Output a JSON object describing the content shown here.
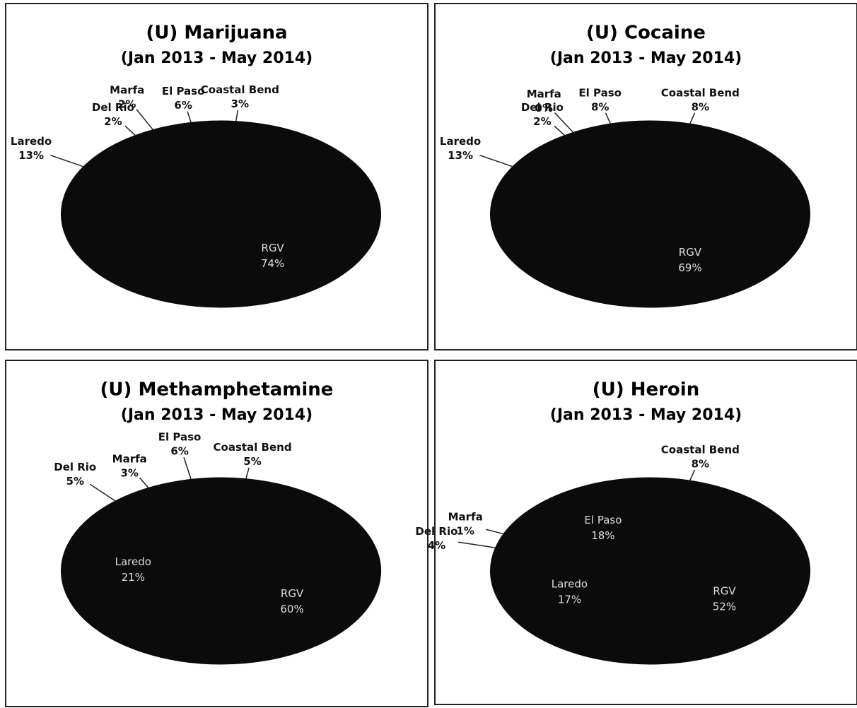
{
  "chart_data": [
    {
      "type": "pie",
      "title": "(U)  Marijuana",
      "subtitle": "(Jan 2013 - May 2014)",
      "categories": [
        "Coastal Bend",
        "RGV",
        "Laredo",
        "Del Rio",
        "Marfa",
        "El Paso"
      ],
      "values": [
        3,
        74,
        13,
        2,
        2,
        6
      ],
      "value_labels": [
        "3%",
        "74%",
        "13%",
        "2%",
        "2%",
        "6%"
      ],
      "color": "#0b0b0b"
    },
    {
      "type": "pie",
      "title": "(U)  Cocaine",
      "subtitle": "(Jan 2013 - May 2014)",
      "categories": [
        "Coastal Bend",
        "RGV",
        "Laredo",
        "Del Rio",
        "Marfa",
        "El Paso"
      ],
      "values": [
        8,
        69,
        13,
        2,
        0,
        8
      ],
      "value_labels": [
        "8%",
        "69%",
        "13%",
        "2%",
        "0%",
        "8%"
      ],
      "color": "#0b0b0b"
    },
    {
      "type": "pie",
      "title": "(U)  Methamphetamine",
      "subtitle": "(Jan 2013 - May 2014)",
      "categories": [
        "Coastal Bend",
        "RGV",
        "Laredo",
        "Del Rio",
        "Marfa",
        "El Paso"
      ],
      "values": [
        5,
        60,
        21,
        5,
        3,
        6
      ],
      "value_labels": [
        "5%",
        "60%",
        "21%",
        "5%",
        "3%",
        "6%"
      ],
      "color": "#0b0b0b"
    },
    {
      "type": "pie",
      "title": "(U)  Heroin",
      "subtitle": "(Jan 2013 - May 2014)",
      "categories": [
        "Coastal Bend",
        "RGV",
        "Laredo",
        "Del Rio",
        "Marfa",
        "El Paso"
      ],
      "values": [
        8,
        52,
        17,
        4,
        1,
        18
      ],
      "value_labels": [
        "8%",
        "52%",
        "17%",
        "4%",
        "1%",
        "18%"
      ],
      "color": "#0b0b0b"
    }
  ]
}
